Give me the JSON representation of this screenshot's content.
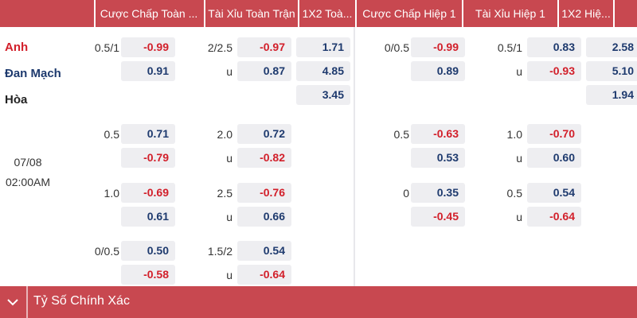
{
  "header": {
    "cols": [
      "Cược Chấp Toàn ...",
      "Tài Xỉu Toàn Trận",
      "1X2 Toà...",
      "Cược Chấp Hiệp 1",
      "Tài Xỉu Hiệp 1",
      "1X2 Hiệ..."
    ]
  },
  "match": {
    "teams": [
      "Anh",
      "Đan Mạch",
      "Hòa"
    ],
    "date": "07/08",
    "time": "02:00AM"
  },
  "colors": {
    "accent": "#c84850",
    "negative": "#d21f2a",
    "positive": "#1e3a6e"
  },
  "markets": {
    "ft_handicap": [
      {
        "line": "0.5/1",
        "home": "-0.99",
        "away": "0.91"
      },
      {
        "line": "0.5",
        "home": "0.71",
        "away": "-0.79"
      },
      {
        "line": "1.0",
        "home": "-0.69",
        "away": "0.61"
      },
      {
        "line": "0/0.5",
        "home": "0.50",
        "away": "-0.58"
      }
    ],
    "ft_ou": [
      {
        "line": "2/2.5",
        "over": "-0.97",
        "u": "u",
        "under": "0.87"
      },
      {
        "line": "2.0",
        "over": "0.72",
        "u": "u",
        "under": "-0.82"
      },
      {
        "line": "2.5",
        "over": "-0.76",
        "u": "u",
        "under": "0.66"
      },
      {
        "line": "1.5/2",
        "over": "0.54",
        "u": "u",
        "under": "-0.64"
      }
    ],
    "ft_1x2": [
      "1.71",
      "4.85",
      "3.45"
    ],
    "h1_handicap": [
      {
        "line": "0/0.5",
        "home": "-0.99",
        "away": "0.89"
      },
      {
        "line": "0.5",
        "home": "-0.63",
        "away": "0.53"
      },
      {
        "line": "0",
        "home": "0.35",
        "away": "-0.45"
      }
    ],
    "h1_ou": [
      {
        "line": "0.5/1",
        "over": "0.83",
        "u": "u",
        "under": "-0.93"
      },
      {
        "line": "1.0",
        "over": "-0.70",
        "u": "u",
        "under": "0.60"
      },
      {
        "line": "0.5",
        "over": "0.54",
        "u": "u",
        "under": "-0.64"
      }
    ],
    "h1_1x2": [
      "2.58",
      "5.10",
      "1.94"
    ]
  },
  "footer": {
    "title": "Tỷ Số Chính Xác",
    "icon": "chevron-down-icon"
  }
}
